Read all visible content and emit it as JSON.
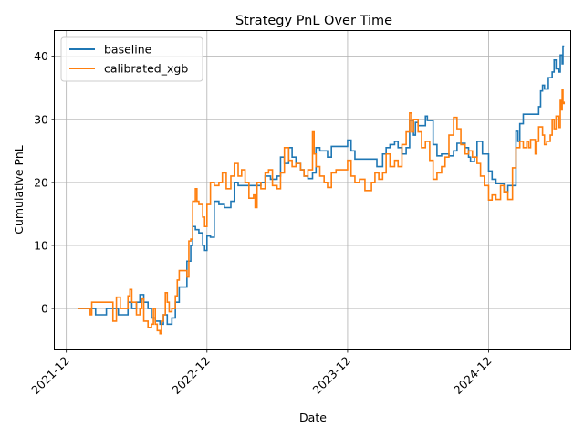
{
  "chart_data": {
    "type": "line",
    "title": "Strategy PnL Over Time",
    "xlabel": "Date",
    "ylabel": "Cumulative PnL",
    "xlim": [
      "2021-11-01",
      "2025-07-01"
    ],
    "ylim": [
      -6.5,
      44
    ],
    "yticks": [
      0,
      10,
      20,
      30,
      40
    ],
    "xticks": [
      {
        "date": "2021-12-01",
        "label": "2021-12"
      },
      {
        "date": "2022-12-01",
        "label": "2022-12"
      },
      {
        "date": "2023-12-01",
        "label": "2023-12"
      },
      {
        "date": "2024-12-01",
        "label": "2024-12"
      }
    ],
    "grid": true,
    "legend_position": "top-left",
    "series": [
      {
        "name": "baseline",
        "color": "#1f77b4",
        "points": [
          [
            "2022-01-01",
            0
          ],
          [
            "2022-02-01",
            0
          ],
          [
            "2022-02-15",
            -1
          ],
          [
            "2022-03-01",
            -1
          ],
          [
            "2022-03-15",
            0
          ],
          [
            "2022-04-01",
            0
          ],
          [
            "2022-04-15",
            -1
          ],
          [
            "2022-05-01",
            -1
          ],
          [
            "2022-05-10",
            1
          ],
          [
            "2022-05-20",
            0
          ],
          [
            "2022-06-01",
            1
          ],
          [
            "2022-06-10",
            2.2
          ],
          [
            "2022-06-20",
            1
          ],
          [
            "2022-07-01",
            0
          ],
          [
            "2022-07-10",
            -1.5
          ],
          [
            "2022-07-20",
            -2
          ],
          [
            "2022-08-01",
            -2.5
          ],
          [
            "2022-08-10",
            -1
          ],
          [
            "2022-08-20",
            -2.5
          ],
          [
            "2022-09-01",
            -1.5
          ],
          [
            "2022-09-10",
            1
          ],
          [
            "2022-09-20",
            3.4
          ],
          [
            "2022-10-01",
            3.4
          ],
          [
            "2022-10-10",
            7.5
          ],
          [
            "2022-10-20",
            10
          ],
          [
            "2022-10-25",
            13
          ],
          [
            "2022-11-01",
            12.5
          ],
          [
            "2022-11-10",
            12
          ],
          [
            "2022-11-20",
            10
          ],
          [
            "2022-11-25",
            9.2
          ],
          [
            "2022-12-01",
            11.5
          ],
          [
            "2022-12-10",
            11.3
          ],
          [
            "2022-12-20",
            17
          ],
          [
            "2023-01-01",
            16.5
          ],
          [
            "2023-01-15",
            16
          ],
          [
            "2023-02-01",
            17
          ],
          [
            "2023-02-10",
            20
          ],
          [
            "2023-02-20",
            19.5
          ],
          [
            "2023-03-10",
            19.5
          ],
          [
            "2023-04-01",
            19.5
          ],
          [
            "2023-04-20",
            20
          ],
          [
            "2023-05-01",
            21
          ],
          [
            "2023-05-15",
            20.5
          ],
          [
            "2023-06-01",
            21
          ],
          [
            "2023-06-10",
            24
          ],
          [
            "2023-06-20",
            23
          ],
          [
            "2023-07-01",
            25.5
          ],
          [
            "2023-07-10",
            24
          ],
          [
            "2023-07-20",
            23
          ],
          [
            "2023-08-01",
            22
          ],
          [
            "2023-08-10",
            21
          ],
          [
            "2023-08-20",
            20.6
          ],
          [
            "2023-09-01",
            21.5
          ],
          [
            "2023-09-10",
            25.5
          ],
          [
            "2023-09-20",
            25
          ],
          [
            "2023-10-01",
            25
          ],
          [
            "2023-10-10",
            24
          ],
          [
            "2023-10-20",
            25.7
          ],
          [
            "2023-11-01",
            25.7
          ],
          [
            "2023-11-15",
            25.7
          ],
          [
            "2023-12-01",
            26.7
          ],
          [
            "2023-12-10",
            25
          ],
          [
            "2023-12-20",
            23.7
          ],
          [
            "2024-01-01",
            23.7
          ],
          [
            "2024-02-01",
            23.7
          ],
          [
            "2024-02-15",
            22.5
          ],
          [
            "2024-03-01",
            24.5
          ],
          [
            "2024-03-10",
            25.5
          ],
          [
            "2024-03-20",
            26
          ],
          [
            "2024-04-01",
            26.5
          ],
          [
            "2024-04-10",
            25.5
          ],
          [
            "2024-04-20",
            24.5
          ],
          [
            "2024-05-01",
            25.5
          ],
          [
            "2024-05-10",
            29.8
          ],
          [
            "2024-05-20",
            27.5
          ],
          [
            "2024-05-25",
            29.5
          ],
          [
            "2024-06-01",
            29
          ],
          [
            "2024-06-10",
            29
          ],
          [
            "2024-06-20",
            30.5
          ],
          [
            "2024-06-25",
            29.8
          ],
          [
            "2024-07-01",
            29.8
          ],
          [
            "2024-07-10",
            26
          ],
          [
            "2024-07-20",
            24.2
          ],
          [
            "2024-08-01",
            24.5
          ],
          [
            "2024-08-20",
            24.2
          ],
          [
            "2024-09-01",
            25
          ],
          [
            "2024-09-10",
            26.2
          ],
          [
            "2024-09-20",
            26.2
          ],
          [
            "2024-10-01",
            25.5
          ],
          [
            "2024-10-10",
            24
          ],
          [
            "2024-10-15",
            23.3
          ],
          [
            "2024-10-25",
            24
          ],
          [
            "2024-11-01",
            26.5
          ],
          [
            "2024-11-15",
            24.5
          ],
          [
            "2024-12-01",
            21.8
          ],
          [
            "2024-12-10",
            20.5
          ],
          [
            "2024-12-20",
            19.8
          ],
          [
            "2025-01-01",
            19.8
          ],
          [
            "2025-01-10",
            18.5
          ],
          [
            "2025-01-20",
            19.5
          ],
          [
            "2025-02-01",
            19.5
          ],
          [
            "2025-02-10",
            28.1
          ],
          [
            "2025-02-15",
            26.5
          ],
          [
            "2025-02-20",
            29.3
          ],
          [
            "2025-03-01",
            30.8
          ],
          [
            "2025-03-10",
            30.8
          ],
          [
            "2025-04-01",
            30.8
          ],
          [
            "2025-04-10",
            32
          ],
          [
            "2025-04-15",
            34.5
          ],
          [
            "2025-04-20",
            35.4
          ],
          [
            "2025-04-25",
            34.8
          ],
          [
            "2025-05-01",
            34.8
          ],
          [
            "2025-05-05",
            36.6
          ],
          [
            "2025-05-10",
            36.6
          ],
          [
            "2025-05-15",
            37.5
          ],
          [
            "2025-05-20",
            39.4
          ],
          [
            "2025-05-25",
            38
          ],
          [
            "2025-06-01",
            37.5
          ],
          [
            "2025-06-05",
            40.2
          ],
          [
            "2025-06-10",
            38.8
          ],
          [
            "2025-06-12",
            41.6
          ],
          [
            "2025-06-15",
            41.6
          ]
        ]
      },
      {
        "name": "calibrated_xgb",
        "color": "#ff7f0e",
        "points": [
          [
            "2022-01-01",
            0
          ],
          [
            "2022-01-15",
            0
          ],
          [
            "2022-02-01",
            -1
          ],
          [
            "2022-02-05",
            1
          ],
          [
            "2022-03-01",
            1
          ],
          [
            "2022-03-15",
            1
          ],
          [
            "2022-04-01",
            -2
          ],
          [
            "2022-04-10",
            1.8
          ],
          [
            "2022-04-20",
            0
          ],
          [
            "2022-05-01",
            0
          ],
          [
            "2022-05-10",
            2
          ],
          [
            "2022-05-15",
            3
          ],
          [
            "2022-05-20",
            1
          ],
          [
            "2022-06-01",
            -1
          ],
          [
            "2022-06-10",
            0
          ],
          [
            "2022-06-15",
            1.5
          ],
          [
            "2022-06-20",
            -2
          ],
          [
            "2022-07-01",
            -3
          ],
          [
            "2022-07-10",
            -2.5
          ],
          [
            "2022-07-15",
            0
          ],
          [
            "2022-07-20",
            -2.5
          ],
          [
            "2022-07-25",
            -3.5
          ],
          [
            "2022-08-01",
            -4
          ],
          [
            "2022-08-05",
            -2
          ],
          [
            "2022-08-10",
            -1
          ],
          [
            "2022-08-15",
            2.5
          ],
          [
            "2022-08-20",
            1
          ],
          [
            "2022-08-25",
            -0.5
          ],
          [
            "2022-09-01",
            0
          ],
          [
            "2022-09-10",
            2
          ],
          [
            "2022-09-15",
            4.5
          ],
          [
            "2022-09-20",
            6
          ],
          [
            "2022-10-01",
            6
          ],
          [
            "2022-10-10",
            5
          ],
          [
            "2022-10-15",
            10.7
          ],
          [
            "2022-10-20",
            11
          ],
          [
            "2022-10-25",
            17
          ],
          [
            "2022-11-01",
            19
          ],
          [
            "2022-11-05",
            17
          ],
          [
            "2022-11-10",
            16.5
          ],
          [
            "2022-11-20",
            14.5
          ],
          [
            "2022-11-25",
            13
          ],
          [
            "2022-12-01",
            16.5
          ],
          [
            "2022-12-10",
            20
          ],
          [
            "2022-12-20",
            19.5
          ],
          [
            "2023-01-01",
            20
          ],
          [
            "2023-01-10",
            21.5
          ],
          [
            "2023-01-20",
            19
          ],
          [
            "2023-02-01",
            21
          ],
          [
            "2023-02-10",
            23
          ],
          [
            "2023-02-20",
            21
          ],
          [
            "2023-03-01",
            22
          ],
          [
            "2023-03-10",
            20
          ],
          [
            "2023-03-20",
            17.5
          ],
          [
            "2023-04-01",
            18
          ],
          [
            "2023-04-05",
            16
          ],
          [
            "2023-04-10",
            20
          ],
          [
            "2023-04-20",
            19
          ],
          [
            "2023-05-01",
            21.5
          ],
          [
            "2023-05-10",
            22
          ],
          [
            "2023-05-20",
            19.5
          ],
          [
            "2023-06-01",
            19
          ],
          [
            "2023-06-10",
            21.5
          ],
          [
            "2023-06-20",
            25.5
          ],
          [
            "2023-07-01",
            23.5
          ],
          [
            "2023-07-10",
            22.5
          ],
          [
            "2023-07-20",
            23
          ],
          [
            "2023-08-01",
            22
          ],
          [
            "2023-08-10",
            21
          ],
          [
            "2023-08-20",
            22
          ],
          [
            "2023-09-01",
            28
          ],
          [
            "2023-09-05",
            24.5
          ],
          [
            "2023-09-10",
            22.5
          ],
          [
            "2023-09-20",
            21
          ],
          [
            "2023-10-01",
            20
          ],
          [
            "2023-10-10",
            19.2
          ],
          [
            "2023-10-20",
            21.5
          ],
          [
            "2023-11-01",
            22
          ],
          [
            "2023-11-15",
            22
          ],
          [
            "2023-12-01",
            23.5
          ],
          [
            "2023-12-10",
            21
          ],
          [
            "2023-12-20",
            20
          ],
          [
            "2024-01-01",
            20.5
          ],
          [
            "2024-01-15",
            18.7
          ],
          [
            "2024-02-01",
            20
          ],
          [
            "2024-02-10",
            21.5
          ],
          [
            "2024-02-20",
            20.5
          ],
          [
            "2024-03-01",
            21.5
          ],
          [
            "2024-03-10",
            24.5
          ],
          [
            "2024-03-20",
            22.5
          ],
          [
            "2024-04-01",
            23.5
          ],
          [
            "2024-04-10",
            22.5
          ],
          [
            "2024-04-20",
            26
          ],
          [
            "2024-05-01",
            28
          ],
          [
            "2024-05-10",
            31
          ],
          [
            "2024-05-15",
            28
          ],
          [
            "2024-05-20",
            30
          ],
          [
            "2024-06-01",
            28
          ],
          [
            "2024-06-10",
            25.5
          ],
          [
            "2024-06-20",
            26.5
          ],
          [
            "2024-07-01",
            23.5
          ],
          [
            "2024-07-10",
            20.5
          ],
          [
            "2024-07-20",
            21.5
          ],
          [
            "2024-08-01",
            22.5
          ],
          [
            "2024-08-10",
            24
          ],
          [
            "2024-08-20",
            27.5
          ],
          [
            "2024-09-01",
            30.3
          ],
          [
            "2024-09-10",
            28.5
          ],
          [
            "2024-09-20",
            26
          ],
          [
            "2024-10-01",
            24.5
          ],
          [
            "2024-10-10",
            25
          ],
          [
            "2024-10-20",
            24
          ],
          [
            "2024-11-01",
            23
          ],
          [
            "2024-11-10",
            21
          ],
          [
            "2024-11-20",
            19.5
          ],
          [
            "2024-12-01",
            17.2
          ],
          [
            "2024-12-10",
            18
          ],
          [
            "2024-12-20",
            17.3
          ],
          [
            "2025-01-01",
            19.5
          ],
          [
            "2025-01-10",
            18.5
          ],
          [
            "2025-01-20",
            17.3
          ],
          [
            "2025-02-01",
            22.3
          ],
          [
            "2025-02-10",
            25.5
          ],
          [
            "2025-02-20",
            26.5
          ],
          [
            "2025-03-01",
            25.5
          ],
          [
            "2025-03-10",
            26.5
          ],
          [
            "2025-03-15",
            25.5
          ],
          [
            "2025-03-20",
            26.8
          ],
          [
            "2025-04-01",
            24.5
          ],
          [
            "2025-04-05",
            26.5
          ],
          [
            "2025-04-10",
            28.8
          ],
          [
            "2025-04-20",
            27.5
          ],
          [
            "2025-04-25",
            26
          ],
          [
            "2025-05-01",
            26.5
          ],
          [
            "2025-05-10",
            27.5
          ],
          [
            "2025-05-15",
            30
          ],
          [
            "2025-05-20",
            28.5
          ],
          [
            "2025-05-25",
            30.5
          ],
          [
            "2025-06-01",
            28.7
          ],
          [
            "2025-06-05",
            33
          ],
          [
            "2025-06-08",
            31.5
          ],
          [
            "2025-06-10",
            34.7
          ],
          [
            "2025-06-12",
            32.5
          ],
          [
            "2025-06-15",
            32.8
          ]
        ]
      }
    ]
  }
}
